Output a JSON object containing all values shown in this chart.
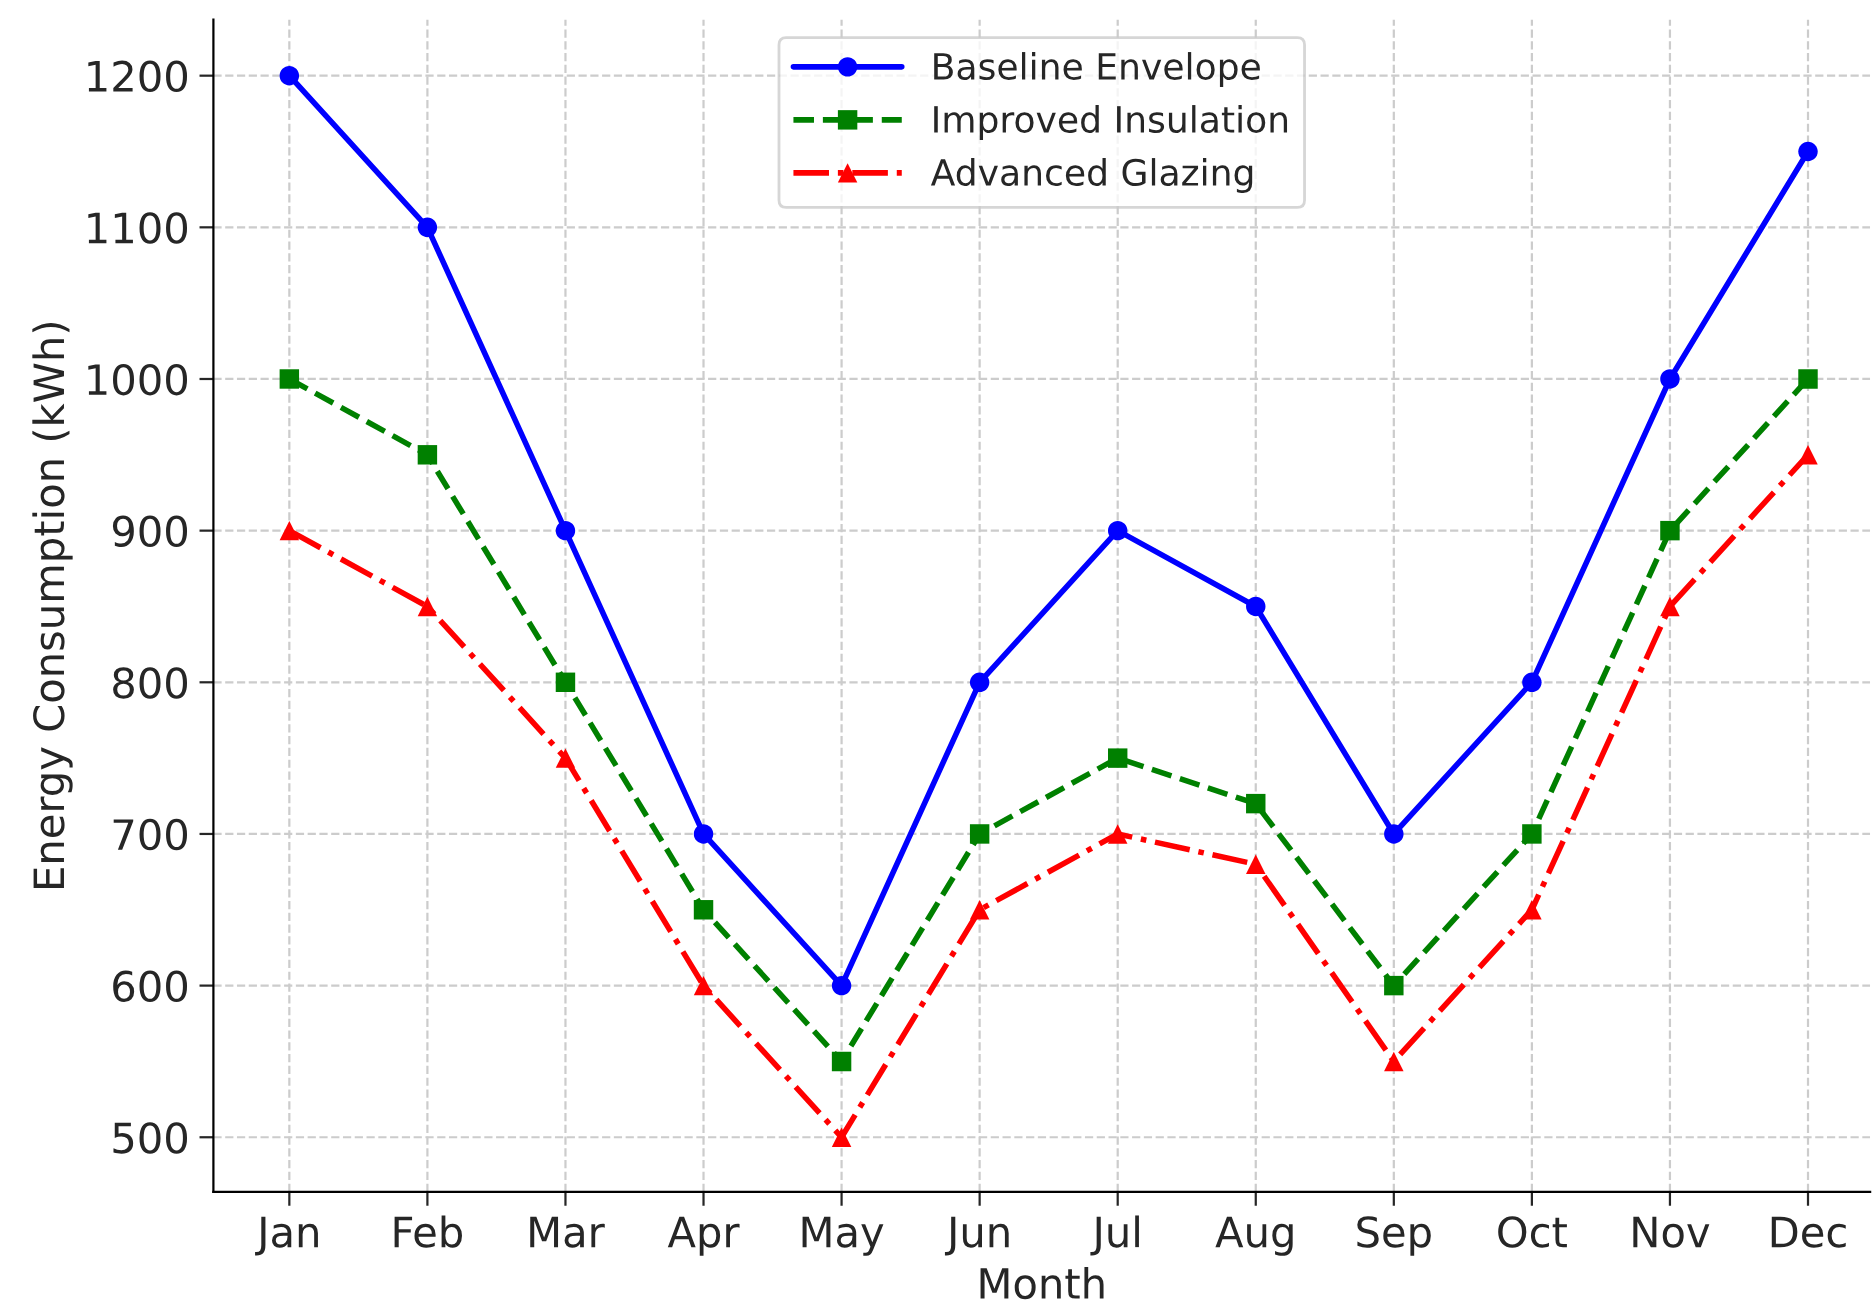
{
  "chart_data": {
    "type": "line",
    "xlabel": "Month",
    "ylabel": "Energy Consumption (kWh)",
    "categories": [
      "Jan",
      "Feb",
      "Mar",
      "Apr",
      "May",
      "Jun",
      "Jul",
      "Aug",
      "Sep",
      "Oct",
      "Nov",
      "Dec"
    ],
    "series": [
      {
        "name": "Baseline Envelope",
        "color": "#0000ff",
        "marker": "circle",
        "line_style": "solid",
        "values": [
          1200,
          1100,
          900,
          700,
          600,
          800,
          900,
          850,
          700,
          800,
          1000,
          1150
        ]
      },
      {
        "name": "Improved Insulation",
        "color": "#008000",
        "marker": "square",
        "line_style": "dashed",
        "values": [
          1000,
          950,
          800,
          650,
          550,
          700,
          750,
          720,
          600,
          700,
          900,
          1000
        ]
      },
      {
        "name": "Advanced Glazing",
        "color": "#ff0000",
        "marker": "triangle",
        "line_style": "dashdot",
        "values": [
          900,
          850,
          750,
          600,
          500,
          650,
          700,
          680,
          550,
          650,
          850,
          950
        ]
      }
    ],
    "ylim": [
      464,
      1237
    ],
    "yticks": [
      500,
      600,
      700,
      800,
      900,
      1000,
      1100,
      1200
    ],
    "grid": true,
    "legend": "top"
  }
}
